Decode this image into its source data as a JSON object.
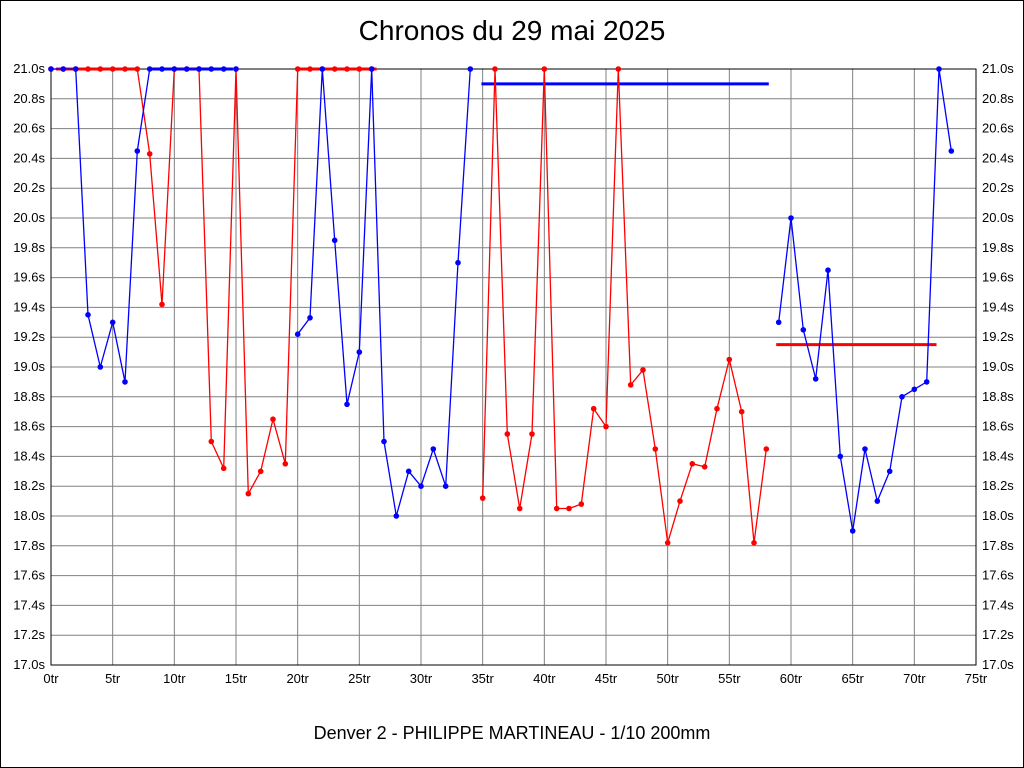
{
  "header": {
    "title": "Chronos du 29 mai 2025"
  },
  "footer": {
    "caption": "Denver 2 - PHILIPPE MARTINEAU - 1/10 200mm"
  },
  "chart_data": {
    "type": "line",
    "title": "Chronos du 29 mai 2025",
    "caption": "Denver 2 - PHILIPPE MARTINEAU - 1/10 200mm",
    "x_unit": "tr",
    "y_unit": "s",
    "xlim": [
      0,
      75
    ],
    "ylim": [
      17.0,
      21.0
    ],
    "x_tick_step": 5,
    "y_tick_step": 0.2,
    "x_tick_labels": [
      "0tr",
      "5tr",
      "10tr",
      "15tr",
      "20tr",
      "25tr",
      "30tr",
      "35tr",
      "40tr",
      "45tr",
      "50tr",
      "55tr",
      "60tr",
      "65tr",
      "70tr",
      "75tr"
    ],
    "y_tick_labels": [
      "21.0s",
      "20.8s",
      "20.6s",
      "20.4s",
      "20.2s",
      "20.0s",
      "19.8s",
      "19.6s",
      "19.4s",
      "19.2s",
      "19.0s",
      "18.8s",
      "18.6s",
      "18.4s",
      "18.2s",
      "18.0s",
      "17.8s",
      "17.6s",
      "17.4s",
      "17.2s",
      "17.0s"
    ],
    "grid": true,
    "colors": {
      "grid": "#808080",
      "frame": "#000000"
    },
    "series": [
      {
        "name": "red",
        "color": "#ff0000",
        "segments": [
          [
            [
              0,
              21.0
            ],
            [
              1,
              21.0
            ],
            [
              2,
              21.0
            ],
            [
              3,
              21.0
            ],
            [
              4,
              21.0
            ],
            [
              5,
              21.0
            ],
            [
              6,
              21.0
            ],
            [
              7,
              21.0
            ],
            [
              8,
              20.43
            ],
            [
              9,
              19.42
            ],
            [
              10,
              21.0
            ],
            [
              11,
              21.0
            ],
            [
              12,
              21.0
            ],
            [
              13,
              18.5
            ],
            [
              14,
              18.32
            ],
            [
              15,
              21.0
            ],
            [
              16,
              18.15
            ],
            [
              17,
              18.3
            ],
            [
              18,
              18.65
            ],
            [
              19,
              18.35
            ],
            [
              20,
              21.0
            ],
            [
              21,
              21.0
            ],
            [
              22,
              21.0
            ],
            [
              23,
              21.0
            ],
            [
              24,
              21.0
            ],
            [
              25,
              21.0
            ],
            [
              26,
              21.0
            ]
          ],
          [
            [
              35,
              18.12
            ],
            [
              36,
              21.0
            ],
            [
              37,
              18.55
            ],
            [
              38,
              18.05
            ],
            [
              39,
              18.55
            ],
            [
              40,
              21.0
            ],
            [
              41,
              18.05
            ],
            [
              42,
              18.05
            ],
            [
              43,
              18.08
            ],
            [
              44,
              18.72
            ],
            [
              45,
              18.6
            ],
            [
              46,
              21.0
            ],
            [
              47,
              18.88
            ],
            [
              48,
              18.98
            ],
            [
              49,
              18.45
            ],
            [
              50,
              17.82
            ],
            [
              51,
              18.1
            ],
            [
              52,
              18.35
            ],
            [
              53,
              18.33
            ],
            [
              54,
              18.72
            ],
            [
              55,
              19.05
            ],
            [
              56,
              18.7
            ],
            [
              57,
              17.82
            ],
            [
              58,
              18.45
            ]
          ]
        ]
      },
      {
        "name": "blue",
        "color": "#0000ff",
        "segments": [
          [
            [
              0,
              21.0
            ],
            [
              1,
              21.0
            ],
            [
              2,
              21.0
            ],
            [
              3,
              19.35
            ],
            [
              4,
              19.0
            ],
            [
              5,
              19.3
            ],
            [
              6,
              18.9
            ],
            [
              7,
              20.45
            ],
            [
              8,
              21.0
            ],
            [
              9,
              21.0
            ],
            [
              10,
              21.0
            ],
            [
              11,
              21.0
            ],
            [
              12,
              21.0
            ],
            [
              13,
              21.0
            ],
            [
              14,
              21.0
            ],
            [
              15,
              21.0
            ]
          ],
          [
            [
              20,
              19.22
            ],
            [
              21,
              19.33
            ],
            [
              22,
              21.0
            ],
            [
              23,
              19.85
            ],
            [
              24,
              18.75
            ],
            [
              25,
              19.1
            ],
            [
              26,
              21.0
            ],
            [
              27,
              18.5
            ],
            [
              28,
              18.0
            ],
            [
              29,
              18.3
            ],
            [
              30,
              18.2
            ],
            [
              31,
              18.45
            ],
            [
              32,
              18.2
            ],
            [
              33,
              19.7
            ],
            [
              34,
              21.0
            ]
          ],
          [
            [
              59,
              19.3
            ],
            [
              60,
              20.0
            ],
            [
              61,
              19.25
            ],
            [
              62,
              18.92
            ],
            [
              63,
              19.65
            ],
            [
              64,
              18.4
            ],
            [
              65,
              17.9
            ],
            [
              66,
              18.45
            ],
            [
              67,
              18.1
            ],
            [
              68,
              18.3
            ],
            [
              69,
              18.8
            ],
            [
              70,
              18.85
            ],
            [
              71,
              18.9
            ],
            [
              72,
              21.0
            ],
            [
              73,
              20.45
            ]
          ]
        ]
      }
    ],
    "reference_lines": [
      {
        "color": "#ff0000",
        "y": 21.0,
        "x1": 0.4,
        "x2": 7.0
      },
      {
        "color": "#0000ff",
        "y": 21.0,
        "x1": 8.0,
        "x2": 14.75
      },
      {
        "color": "#ff0000",
        "y": 21.0,
        "x1": 19.9,
        "x2": 26.4
      },
      {
        "color": "#0000ff",
        "y": 20.9,
        "x1": 34.9,
        "x2": 58.2
      },
      {
        "color": "#ff0000",
        "y": 19.15,
        "x1": 58.8,
        "x2": 71.8
      }
    ]
  }
}
